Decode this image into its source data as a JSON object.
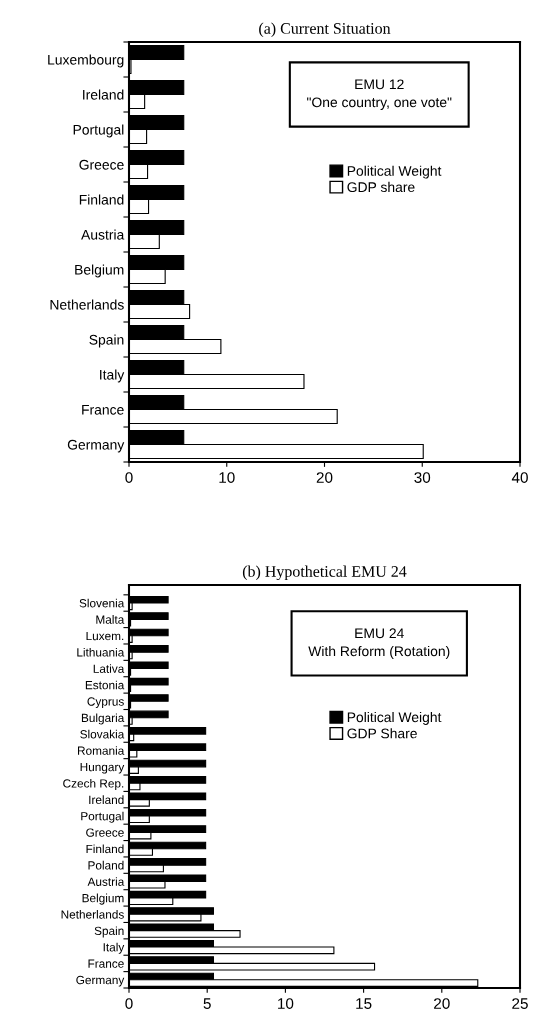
{
  "chart_data": [
    {
      "type": "bar",
      "orientation": "horizontal",
      "title": "(a) Current Situation",
      "categories": [
        "Luxembourg",
        "Ireland",
        "Portugal",
        "Greece",
        "Finland",
        "Austria",
        "Belgium",
        "Netherlands",
        "Spain",
        "Italy",
        "France",
        "Germany"
      ],
      "series": [
        {
          "name": "Political Weight",
          "color": "#000000",
          "values": [
            5.6,
            5.6,
            5.6,
            5.6,
            5.6,
            5.6,
            5.6,
            5.6,
            5.6,
            5.6,
            5.6,
            5.6
          ]
        },
        {
          "name": "GDP share",
          "color": "#ffffff",
          "values": [
            0.2,
            1.6,
            1.8,
            1.9,
            2.0,
            3.1,
            3.7,
            6.2,
            9.4,
            17.9,
            21.3,
            30.1
          ]
        }
      ],
      "xlim": [
        0,
        40
      ],
      "xticks": [
        0,
        10,
        20,
        30,
        40
      ],
      "annotations": [
        "EMU 12\n\"One country, one vote\""
      ],
      "legend": "right",
      "grid": false
    },
    {
      "type": "bar",
      "orientation": "horizontal",
      "title": "(b) Hypothetical EMU 24",
      "categories": [
        "Slovenia",
        "Malta",
        "Luxem.",
        "Lithuania",
        "Lativa",
        "Estonia",
        "Cyprus",
        "Bulgaria",
        "Slovakia",
        "Romania",
        "Hungary",
        "Czech Rep.",
        "Ireland",
        "Portugal",
        "Greece",
        "Finland",
        "Poland",
        "Austria",
        "Belgium",
        "Netherlands",
        "Spain",
        "Italy",
        "France",
        "Germany"
      ],
      "series": [
        {
          "name": "Political Weight",
          "color": "#000000",
          "values": [
            2.5,
            2.5,
            2.5,
            2.5,
            2.5,
            2.5,
            2.5,
            2.5,
            4.9,
            4.9,
            4.9,
            4.9,
            4.9,
            4.9,
            4.9,
            4.9,
            4.9,
            4.9,
            4.9,
            5.4,
            5.4,
            5.4,
            5.4,
            5.4
          ]
        },
        {
          "name": "GDP Share",
          "color": "#ffffff",
          "values": [
            0.2,
            0.1,
            0.2,
            0.2,
            0.1,
            0.1,
            0.1,
            0.2,
            0.3,
            0.5,
            0.6,
            0.7,
            1.3,
            1.3,
            1.4,
            1.5,
            2.2,
            2.3,
            2.8,
            4.6,
            7.1,
            13.1,
            15.7,
            22.3
          ]
        }
      ],
      "xlim": [
        0,
        25
      ],
      "xticks": [
        0,
        5,
        10,
        15,
        20,
        25
      ],
      "annotations": [
        "EMU 24\nWith Reform (Rotation)"
      ],
      "legend": "right",
      "grid": false
    }
  ]
}
